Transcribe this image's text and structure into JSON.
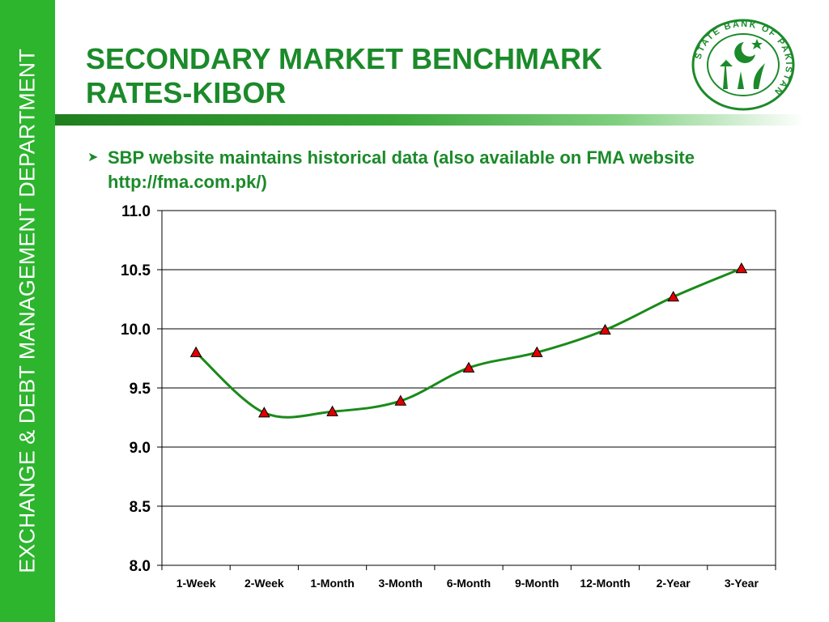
{
  "sidebar": {
    "label": "EXCHANGE & DEBT MANAGEMENT DEPARTMENT"
  },
  "header": {
    "title_line1": "SECONDARY MARKET BENCHMARK",
    "title_line2": "RATES-KIBOR"
  },
  "logo": {
    "text": "STATE BANK OF PAKISTAN"
  },
  "bullet": {
    "line1": "SBP website maintains historical data (also available on FMA website",
    "line2": "http://fma.com.pk/)"
  },
  "colors": {
    "sidebar": "#2db52d",
    "title": "#1b8a2a",
    "line": "#1a8a1a",
    "marker": "#e00000"
  },
  "chart_data": {
    "type": "line",
    "categories": [
      "1-Week",
      "2-Week",
      "1-Month",
      "3-Month",
      "6-Month",
      "9-Month",
      "12-Month",
      "2-Year",
      "3-Year"
    ],
    "series": [
      {
        "values": [
          9.8,
          9.29,
          9.3,
          9.39,
          9.67,
          9.8,
          9.99,
          10.27,
          10.51
        ]
      }
    ],
    "ylim": [
      8.0,
      11.0
    ],
    "yticks": [
      "8.0",
      "8.5",
      "9.0",
      "9.5",
      "10.0",
      "10.5",
      "11.0"
    ],
    "grid": true,
    "legend": "none",
    "marker": "triangle"
  }
}
